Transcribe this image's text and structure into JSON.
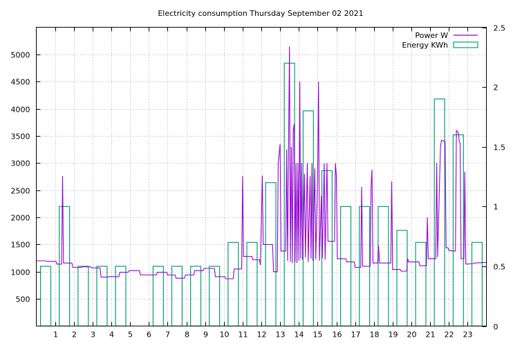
{
  "chart_data": {
    "type": "line",
    "title": "Electricity consumption Thursday September 02 2021",
    "x": {
      "ticks": [
        "1",
        "2",
        "3",
        "4",
        "5",
        "6",
        "7",
        "8",
        "9",
        "10",
        "11",
        "12",
        "13",
        "14",
        "15",
        "16",
        "17",
        "18",
        "19",
        "20",
        "21",
        "22",
        "23"
      ],
      "range": [
        0,
        24
      ]
    },
    "y_left": {
      "ticks": [
        "500",
        "1000",
        "1500",
        "2000",
        "2500",
        "3000",
        "3500",
        "4000",
        "4500",
        "5000"
      ],
      "range": [
        0,
        5500
      ]
    },
    "y_right": {
      "ticks": [
        "0",
        "0.5",
        "1",
        "1.5",
        "2",
        "2.5"
      ],
      "range": [
        0,
        2.5
      ]
    },
    "grid": true,
    "legend_position": "top-right",
    "series": [
      {
        "name": "Power W",
        "axis": "left",
        "style": "line",
        "color": "#9400d3",
        "points": [
          [
            0,
            1200
          ],
          [
            0.5,
            1200
          ],
          [
            0.55,
            1190
          ],
          [
            1.05,
            1190
          ],
          [
            1.1,
            1140
          ],
          [
            1.35,
            1140
          ],
          [
            1.4,
            2760
          ],
          [
            1.45,
            1160
          ],
          [
            1.9,
            1160
          ],
          [
            1.95,
            1080
          ],
          [
            2.4,
            1080
          ],
          [
            2.45,
            1090
          ],
          [
            2.9,
            1090
          ],
          [
            2.95,
            1070
          ],
          [
            3.4,
            1070
          ],
          [
            3.45,
            900
          ],
          [
            3.8,
            900
          ],
          [
            3.85,
            910
          ],
          [
            4.4,
            910
          ],
          [
            4.45,
            990
          ],
          [
            4.9,
            990
          ],
          [
            4.95,
            1020
          ],
          [
            5.5,
            1020
          ],
          [
            5.55,
            940
          ],
          [
            6.4,
            940
          ],
          [
            6.45,
            990
          ],
          [
            6.95,
            990
          ],
          [
            7.0,
            940
          ],
          [
            7.4,
            940
          ],
          [
            7.45,
            880
          ],
          [
            7.9,
            880
          ],
          [
            7.95,
            940
          ],
          [
            8.4,
            940
          ],
          [
            8.45,
            1020
          ],
          [
            8.9,
            1020
          ],
          [
            8.95,
            1060
          ],
          [
            9.5,
            1060
          ],
          [
            9.55,
            910
          ],
          [
            10.05,
            910
          ],
          [
            10.1,
            870
          ],
          [
            10.5,
            870
          ],
          [
            10.55,
            1050
          ],
          [
            10.95,
            1050
          ],
          [
            11.0,
            2760
          ],
          [
            11.05,
            1280
          ],
          [
            11.5,
            1280
          ],
          [
            11.55,
            1220
          ],
          [
            11.9,
            1220
          ],
          [
            11.95,
            1120
          ],
          [
            12.05,
            2770
          ],
          [
            12.1,
            1500
          ],
          [
            12.6,
            1500
          ],
          [
            12.65,
            1000
          ],
          [
            12.85,
            1000
          ],
          [
            12.9,
            3000
          ],
          [
            13.0,
            3350
          ],
          [
            13.05,
            1380
          ],
          [
            13.3,
            1380
          ],
          [
            13.35,
            3250
          ],
          [
            13.4,
            1200
          ],
          [
            13.45,
            3270
          ],
          [
            13.5,
            5150
          ],
          [
            13.55,
            1180
          ],
          [
            13.6,
            3300
          ],
          [
            13.65,
            1160
          ],
          [
            13.7,
            3600
          ],
          [
            13.75,
            3720
          ],
          [
            13.8,
            1180
          ],
          [
            13.85,
            3000
          ],
          [
            13.9,
            1160
          ],
          [
            13.95,
            3000
          ],
          [
            14.0,
            1200
          ],
          [
            14.05,
            4500
          ],
          [
            14.1,
            1240
          ],
          [
            14.15,
            3000
          ],
          [
            14.2,
            1220
          ],
          [
            14.3,
            2800
          ],
          [
            14.35,
            1260
          ],
          [
            14.45,
            3000
          ],
          [
            14.5,
            1180
          ],
          [
            14.6,
            2760
          ],
          [
            14.65,
            1240
          ],
          [
            14.7,
            3000
          ],
          [
            14.75,
            1200
          ],
          [
            14.85,
            2900
          ],
          [
            14.9,
            1230
          ],
          [
            15.0,
            2760
          ],
          [
            15.05,
            4500
          ],
          [
            15.1,
            1200
          ],
          [
            15.2,
            2400
          ],
          [
            15.25,
            1250
          ],
          [
            15.35,
            3000
          ],
          [
            15.4,
            1220
          ],
          [
            15.5,
            3000
          ],
          [
            15.55,
            1560
          ],
          [
            15.9,
            1560
          ],
          [
            15.95,
            3000
          ],
          [
            16.0,
            2760
          ],
          [
            16.05,
            1240
          ],
          [
            16.5,
            1240
          ],
          [
            16.55,
            1180
          ],
          [
            16.95,
            1180
          ],
          [
            17.0,
            1080
          ],
          [
            17.3,
            1080
          ],
          [
            17.35,
            2560
          ],
          [
            17.4,
            1100
          ],
          [
            17.8,
            1100
          ],
          [
            17.85,
            2560
          ],
          [
            17.9,
            2880
          ],
          [
            17.95,
            1160
          ],
          [
            18.2,
            1160
          ],
          [
            18.25,
            1480
          ],
          [
            18.3,
            1160
          ],
          [
            18.9,
            1160
          ],
          [
            18.95,
            2660
          ],
          [
            19.0,
            1040
          ],
          [
            19.4,
            1040
          ],
          [
            19.45,
            1010
          ],
          [
            19.75,
            1010
          ],
          [
            19.8,
            1240
          ],
          [
            19.85,
            1180
          ],
          [
            20.4,
            1180
          ],
          [
            20.45,
            1110
          ],
          [
            20.8,
            1110
          ],
          [
            20.85,
            2000
          ],
          [
            20.9,
            1240
          ],
          [
            21.3,
            1240
          ],
          [
            21.35,
            3000
          ],
          [
            21.4,
            1270
          ],
          [
            21.55,
            3270
          ],
          [
            21.6,
            3420
          ],
          [
            21.8,
            3400
          ],
          [
            21.85,
            1440
          ],
          [
            21.95,
            1440
          ],
          [
            22.0,
            1390
          ],
          [
            22.35,
            1380
          ],
          [
            22.4,
            3600
          ],
          [
            22.5,
            3560
          ],
          [
            22.55,
            3400
          ],
          [
            22.6,
            3360
          ],
          [
            22.65,
            1240
          ],
          [
            22.8,
            1240
          ],
          [
            22.85,
            2840
          ],
          [
            22.9,
            1140
          ],
          [
            23.3,
            1150
          ],
          [
            23.35,
            1160
          ],
          [
            23.9,
            1170
          ],
          [
            24,
            1170
          ]
        ]
      },
      {
        "name": "Energy KWh",
        "axis": "right",
        "style": "steps",
        "color": "#009e73",
        "values": [
          0.5,
          1.0,
          0.5,
          0.5,
          0.5,
          0.0,
          0.5,
          0.5,
          0.5,
          0.5,
          0.7,
          0.7,
          1.2,
          2.2,
          1.8,
          1.3,
          1.0,
          1.0,
          1.0,
          0.8,
          0.7,
          1.9,
          1.6,
          0.7
        ]
      }
    ]
  }
}
